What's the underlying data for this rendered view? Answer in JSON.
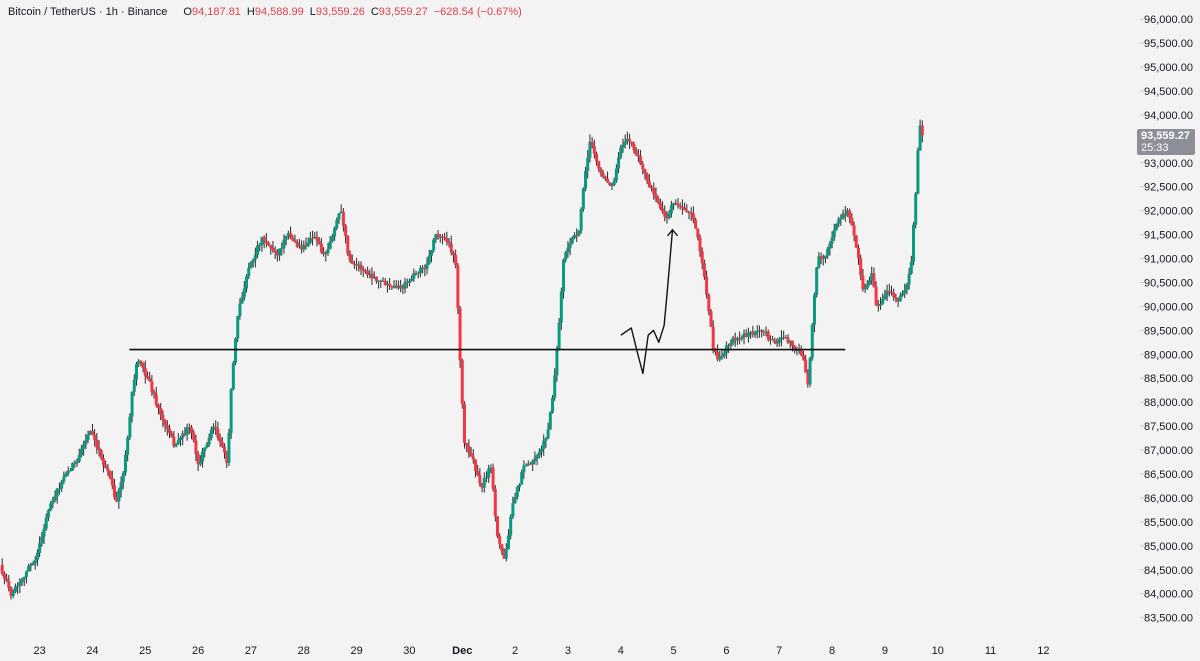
{
  "legend": {
    "symbol": "Bitcoin / TetherUS · 1h · Binance",
    "open_label": "O",
    "open_value": "94,187.81",
    "high_label": "H",
    "high_value": "94,588.99",
    "low_label": "L",
    "low_value": "93,559.26",
    "close_label": "C",
    "close_value": "93,559.27",
    "change": "−628.54 (−0.67%)"
  },
  "last_price": {
    "value": "93,559.27",
    "countdown": "25:33"
  },
  "colors": {
    "background": "#f3f3f3",
    "up": "#089981",
    "down": "#f23645",
    "wick": "#2b2b2b",
    "drawing": "#111111",
    "axis_text": "#131722",
    "price_tag": "#8c8f98"
  },
  "chart_data": {
    "type": "candlestick",
    "title": "",
    "timeframe": "1h",
    "ylim": [
      83200,
      96400
    ],
    "y_ticks": [
      {
        "value": 83500,
        "label": "83,500.00"
      },
      {
        "value": 84000,
        "label": "84,000.00"
      },
      {
        "value": 84500,
        "label": "84,500.00"
      },
      {
        "value": 85000,
        "label": "85,000.00"
      },
      {
        "value": 85500,
        "label": "85,500.00"
      },
      {
        "value": 86000,
        "label": "86,000.00"
      },
      {
        "value": 86500,
        "label": "86,500.00"
      },
      {
        "value": 87000,
        "label": "87,000.00"
      },
      {
        "value": 87500,
        "label": "87,500.00"
      },
      {
        "value": 88000,
        "label": "88,000.00"
      },
      {
        "value": 88500,
        "label": "88,500.00"
      },
      {
        "value": 89000,
        "label": "89,000.00"
      },
      {
        "value": 89500,
        "label": "89,500.00"
      },
      {
        "value": 90000,
        "label": "90,000.00"
      },
      {
        "value": 90500,
        "label": "90,500.00"
      },
      {
        "value": 91000,
        "label": "91,000.00"
      },
      {
        "value": 91500,
        "label": "91,500.00"
      },
      {
        "value": 92000,
        "label": "92,000.00"
      },
      {
        "value": 92500,
        "label": "92,500.00"
      },
      {
        "value": 93000,
        "label": "93,000.00"
      },
      {
        "value": 94000,
        "label": "94,000.00"
      },
      {
        "value": 94500,
        "label": "94,500.00"
      },
      {
        "value": 95000,
        "label": "95,000.00"
      },
      {
        "value": 95500,
        "label": "95,500.00"
      },
      {
        "value": 96000,
        "label": "96,000.00"
      }
    ],
    "x_ticks": [
      {
        "day": 23,
        "label": "23"
      },
      {
        "day": 24,
        "label": "24"
      },
      {
        "day": 25,
        "label": "25"
      },
      {
        "day": 26,
        "label": "26"
      },
      {
        "day": 27,
        "label": "27"
      },
      {
        "day": 28,
        "label": "28"
      },
      {
        "day": 29,
        "label": "29"
      },
      {
        "day": 30,
        "label": "30"
      },
      {
        "day": 31,
        "label": "Dec",
        "bold": true
      },
      {
        "day": 32,
        "label": "2"
      },
      {
        "day": 33,
        "label": "3"
      },
      {
        "day": 34,
        "label": "4"
      },
      {
        "day": 35,
        "label": "5"
      },
      {
        "day": 36,
        "label": "6"
      },
      {
        "day": 37,
        "label": "7"
      },
      {
        "day": 38,
        "label": "8"
      },
      {
        "day": 39,
        "label": "9"
      },
      {
        "day": 40,
        "label": "10"
      },
      {
        "day": 41,
        "label": "11"
      },
      {
        "day": 42,
        "label": "12"
      }
    ],
    "xlim_days": [
      22.25,
      43.45
    ],
    "path_anchors": [
      [
        22.25,
        84600
      ],
      [
        22.45,
        84000
      ],
      [
        22.65,
        84300
      ],
      [
        22.95,
        84800
      ],
      [
        23.15,
        85700
      ],
      [
        23.4,
        86300
      ],
      [
        23.7,
        86800
      ],
      [
        23.95,
        87400
      ],
      [
        24.1,
        87000
      ],
      [
        24.35,
        86400
      ],
      [
        24.45,
        85900
      ],
      [
        24.6,
        86600
      ],
      [
        24.75,
        88200
      ],
      [
        24.85,
        88900
      ],
      [
        25.05,
        88500
      ],
      [
        25.3,
        87700
      ],
      [
        25.55,
        87100
      ],
      [
        25.85,
        87500
      ],
      [
        26.0,
        86700
      ],
      [
        26.3,
        87500
      ],
      [
        26.5,
        86900
      ],
      [
        26.55,
        86700
      ],
      [
        26.62,
        88200
      ],
      [
        26.75,
        89800
      ],
      [
        26.95,
        90800
      ],
      [
        27.2,
        91400
      ],
      [
        27.5,
        91100
      ],
      [
        27.7,
        91500
      ],
      [
        27.95,
        91200
      ],
      [
        28.2,
        91500
      ],
      [
        28.4,
        91000
      ],
      [
        28.55,
        91500
      ],
      [
        28.7,
        92100
      ],
      [
        28.85,
        91000
      ],
      [
        29.2,
        90700
      ],
      [
        29.5,
        90500
      ],
      [
        29.85,
        90400
      ],
      [
        30.1,
        90700
      ],
      [
        30.3,
        90800
      ],
      [
        30.5,
        91500
      ],
      [
        30.7,
        91400
      ],
      [
        30.88,
        90900
      ],
      [
        30.95,
        89100
      ],
      [
        31.03,
        87200
      ],
      [
        31.2,
        86800
      ],
      [
        31.35,
        86200
      ],
      [
        31.55,
        86700
      ],
      [
        31.65,
        85300
      ],
      [
        31.8,
        84700
      ],
      [
        31.95,
        85800
      ],
      [
        32.15,
        86600
      ],
      [
        32.4,
        86800
      ],
      [
        32.6,
        87300
      ],
      [
        32.7,
        88000
      ],
      [
        32.8,
        89200
      ],
      [
        32.92,
        91000
      ],
      [
        33.05,
        91400
      ],
      [
        33.2,
        91500
      ],
      [
        33.3,
        92500
      ],
      [
        33.42,
        93500
      ],
      [
        33.6,
        92800
      ],
      [
        33.85,
        92500
      ],
      [
        34.0,
        93300
      ],
      [
        34.15,
        93500
      ],
      [
        34.3,
        93200
      ],
      [
        34.55,
        92500
      ],
      [
        34.7,
        92200
      ],
      [
        34.85,
        91800
      ],
      [
        35.0,
        92200
      ],
      [
        35.2,
        92000
      ],
      [
        35.35,
        91900
      ],
      [
        35.5,
        91200
      ],
      [
        35.65,
        90100
      ],
      [
        35.75,
        89100
      ],
      [
        35.85,
        88900
      ],
      [
        36.1,
        89300
      ],
      [
        36.4,
        89400
      ],
      [
        36.7,
        89500
      ],
      [
        36.9,
        89200
      ],
      [
        37.1,
        89400
      ],
      [
        37.3,
        89100
      ],
      [
        37.45,
        89000
      ],
      [
        37.55,
        88300
      ],
      [
        37.62,
        89500
      ],
      [
        37.72,
        91000
      ],
      [
        37.9,
        91100
      ],
      [
        38.1,
        91800
      ],
      [
        38.3,
        92000
      ],
      [
        38.45,
        91300
      ],
      [
        38.6,
        90300
      ],
      [
        38.75,
        90700
      ],
      [
        38.85,
        89900
      ],
      [
        39.05,
        90400
      ],
      [
        39.25,
        90100
      ],
      [
        39.4,
        90400
      ],
      [
        39.5,
        90900
      ],
      [
        39.6,
        92700
      ],
      [
        39.65,
        93800
      ],
      [
        39.72,
        93560
      ]
    ],
    "trend_line": {
      "value": 89100,
      "from_day": 24.7,
      "to_day": 38.25
    }
  }
}
